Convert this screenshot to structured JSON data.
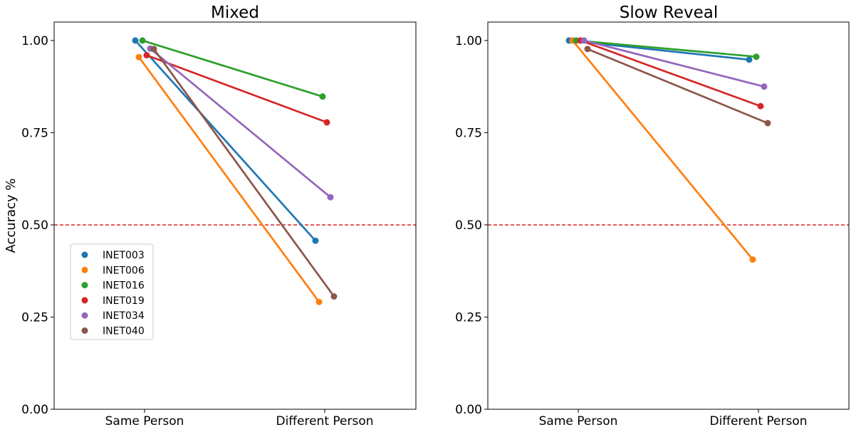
{
  "chart_data": [
    {
      "type": "line",
      "title": "Mixed",
      "ylabel": "Accuracy %",
      "xlabel": "",
      "categories": [
        "Same Person",
        "Different Person"
      ],
      "ylim": [
        0,
        1.05
      ],
      "yticks": [
        "0.00",
        "0.25",
        "0.50",
        "0.75",
        "1.00"
      ],
      "reference_line": {
        "y": 0.5,
        "style": "dashed",
        "color": "#d62728"
      },
      "legend": {
        "placement": "center-left"
      },
      "series": [
        {
          "name": "INET003",
          "color": "#1f77b4",
          "values": [
            1.0,
            0.457
          ]
        },
        {
          "name": "INET006",
          "color": "#ff7f0e",
          "values": [
            0.955,
            0.291
          ]
        },
        {
          "name": "INET016",
          "color": "#2ca02c",
          "values": [
            1.0,
            0.848
          ]
        },
        {
          "name": "INET019",
          "color": "#d62728",
          "values": [
            0.96,
            0.778
          ]
        },
        {
          "name": "INET034",
          "color": "#9467bd",
          "values": [
            0.978,
            0.575
          ]
        },
        {
          "name": "INET040",
          "color": "#8c564b",
          "values": [
            0.977,
            0.306
          ]
        }
      ]
    },
    {
      "type": "line",
      "title": "Slow Reveal",
      "ylabel": "",
      "xlabel": "",
      "categories": [
        "Same Person",
        "Different Person"
      ],
      "ylim": [
        0,
        1.05
      ],
      "yticks": [
        "0.00",
        "0.25",
        "0.50",
        "0.75",
        "1.00"
      ],
      "reference_line": {
        "y": 0.5,
        "style": "dashed",
        "color": "#d62728"
      },
      "series": [
        {
          "name": "INET003",
          "color": "#1f77b4",
          "values": [
            1.0,
            0.948
          ]
        },
        {
          "name": "INET006",
          "color": "#ff7f0e",
          "values": [
            1.0,
            0.406
          ]
        },
        {
          "name": "INET016",
          "color": "#2ca02c",
          "values": [
            1.0,
            0.956
          ]
        },
        {
          "name": "INET019",
          "color": "#d62728",
          "values": [
            1.0,
            0.822
          ]
        },
        {
          "name": "INET034",
          "color": "#9467bd",
          "values": [
            1.0,
            0.875
          ]
        },
        {
          "name": "INET040",
          "color": "#8c564b",
          "values": [
            0.977,
            0.776
          ]
        }
      ]
    }
  ]
}
